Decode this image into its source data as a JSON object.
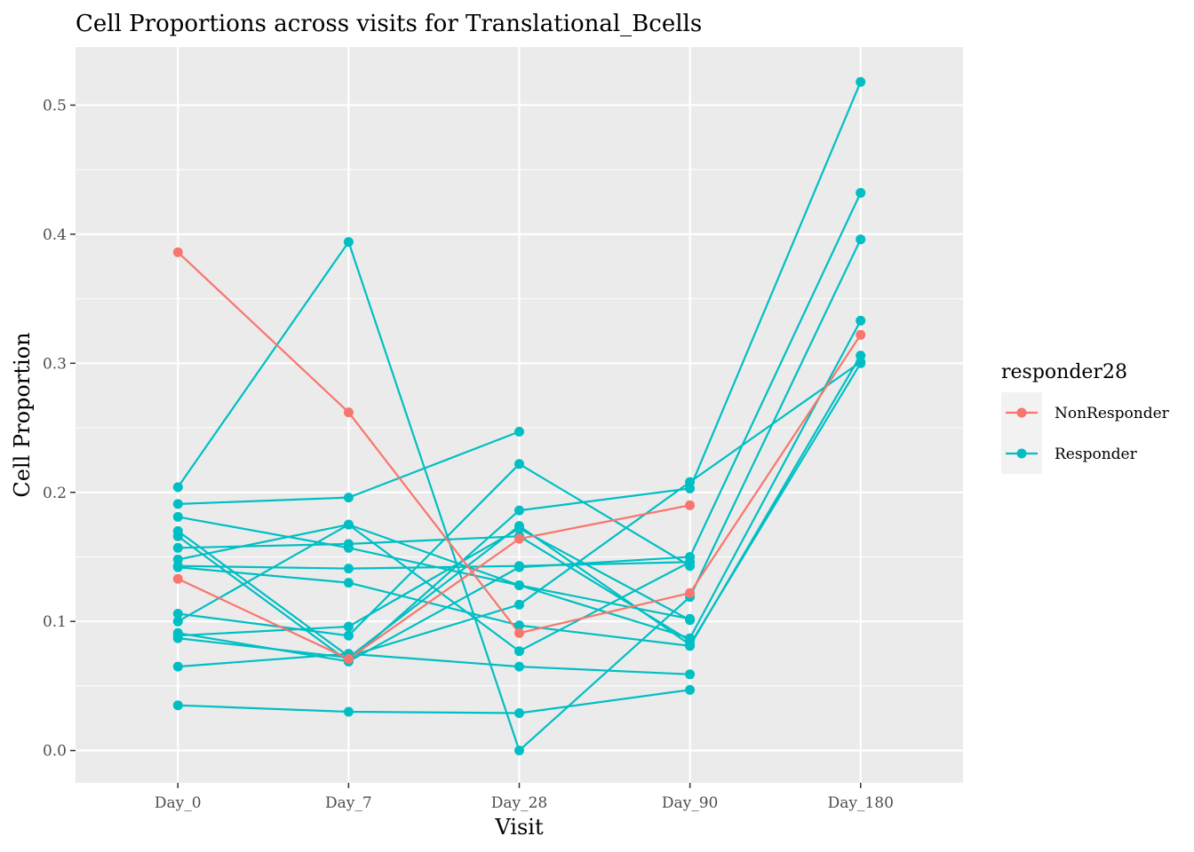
{
  "chart_data": {
    "type": "line",
    "title": "Cell Proportions across visits for Translational_Bcells",
    "xlabel": "Visit",
    "ylabel": "Cell Proportion",
    "categories": [
      "Day_0",
      "Day_7",
      "Day_28",
      "Day_90",
      "Day_180"
    ],
    "y_ticks": [
      "0.0",
      "0.1",
      "0.2",
      "0.3",
      "0.4",
      "0.5"
    ],
    "ylim": [
      -0.025,
      0.545
    ],
    "grid": true,
    "legend": {
      "title": "responder28",
      "position": "right",
      "entries": [
        {
          "label": "NonResponder",
          "color": "#F8766D"
        },
        {
          "label": "Responder",
          "color": "#00BFC4"
        }
      ]
    },
    "series": [
      {
        "group": "NonResponder",
        "values": [
          0.386,
          0.262,
          0.091,
          0.122,
          0.322
        ]
      },
      {
        "group": "NonResponder",
        "values": [
          0.133,
          0.071,
          0.164,
          0.19,
          null
        ]
      },
      {
        "group": "Responder",
        "values": [
          0.204,
          0.394,
          0.0,
          0.119,
          0.396
        ]
      },
      {
        "group": "Responder",
        "values": [
          0.191,
          0.196,
          0.247,
          null,
          null
        ]
      },
      {
        "group": "Responder",
        "values": [
          0.181,
          0.157,
          0.128,
          0.087,
          0.333
        ]
      },
      {
        "group": "Responder",
        "values": [
          0.17,
          0.073,
          0.113,
          0.208,
          0.301
        ]
      },
      {
        "group": "Responder",
        "values": [
          0.166,
          0.069,
          0.142,
          0.15,
          0.432
        ]
      },
      {
        "group": "Responder",
        "values": [
          0.157,
          0.16,
          0.166,
          0.085,
          null
        ]
      },
      {
        "group": "Responder",
        "values": [
          0.148,
          0.175,
          0.077,
          0.146,
          null
        ]
      },
      {
        "group": "Responder",
        "values": [
          0.143,
          0.141,
          0.143,
          0.146,
          null
        ]
      },
      {
        "group": "Responder",
        "values": [
          0.142,
          0.13,
          0.097,
          0.081,
          0.306
        ]
      },
      {
        "group": "Responder",
        "values": [
          0.106,
          0.089,
          0.222,
          0.143,
          null
        ]
      },
      {
        "group": "Responder",
        "values": [
          0.1,
          0.175,
          0.128,
          0.102,
          null
        ]
      },
      {
        "group": "Responder",
        "values": [
          0.091,
          0.069,
          0.186,
          0.203,
          0.518
        ]
      },
      {
        "group": "Responder",
        "values": [
          0.089,
          0.096,
          0.172,
          0.101,
          null
        ]
      },
      {
        "group": "Responder",
        "values": [
          0.087,
          0.072,
          0.174,
          0.082,
          0.3
        ]
      },
      {
        "group": "Responder",
        "values": [
          0.065,
          0.075,
          0.065,
          0.059,
          null
        ]
      },
      {
        "group": "Responder",
        "values": [
          0.035,
          0.03,
          0.029,
          0.047,
          null
        ]
      }
    ]
  }
}
